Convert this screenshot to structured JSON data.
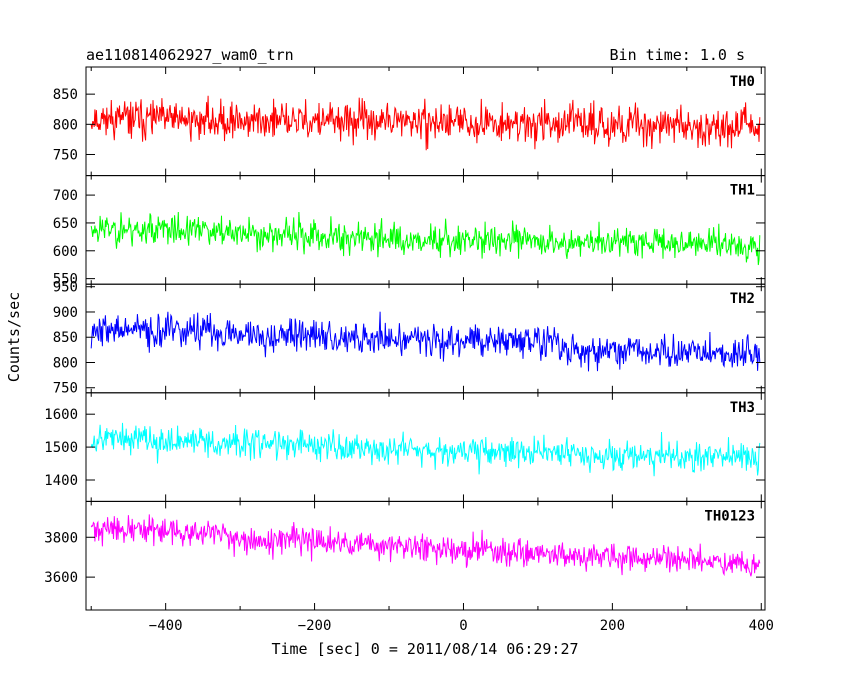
{
  "chart_data": {
    "type": "line",
    "title": "ae110814062927_wam0_trn",
    "subtitle": "Bin time: 1.0 s",
    "xlabel": "Time [sec] 0 = 2011/08/14 06:29:27",
    "ylabel": "Counts/sec",
    "xlim": [
      -507,
      405
    ],
    "xticks": [
      -400,
      -200,
      0,
      200,
      400
    ],
    "xtick_labels": [
      "−400",
      "−200",
      "0",
      "200",
      "400"
    ],
    "grid": false,
    "panels": [
      {
        "name": "TH0",
        "color": "#ff0000",
        "ylim": [
          715,
          895
        ],
        "yticks": [
          750,
          800,
          850
        ],
        "ytick_labels": [
          "750",
          "800",
          "850"
        ],
        "x": [
          -500,
          -400,
          -300,
          -200,
          -100,
          0,
          100,
          200,
          300,
          400
        ],
        "y": [
          810,
          808,
          806,
          805,
          804,
          803,
          801,
          800,
          798,
          796
        ],
        "noise": 26,
        "seed": 11
      },
      {
        "name": "TH1",
        "color": "#00ff00",
        "ylim": [
          540,
          735
        ],
        "yticks": [
          550,
          600,
          650,
          700
        ],
        "ytick_labels": [
          "550",
          "600",
          "650",
          "700"
        ],
        "x": [
          -500,
          -400,
          -300,
          -200,
          -100,
          0,
          100,
          200,
          300,
          400
        ],
        "y": [
          640,
          638,
          632,
          626,
          622,
          620,
          617,
          616,
          614,
          612
        ],
        "noise": 24,
        "seed": 23
      },
      {
        "name": "TH2",
        "color": "#0000ff",
        "ylim": [
          740,
          955
        ],
        "yticks": [
          750,
          800,
          850,
          900,
          950
        ],
        "ytick_labels": [
          "750",
          "800",
          "850",
          "900",
          "950"
        ],
        "x": [
          -500,
          -400,
          -300,
          -200,
          -100,
          0,
          100,
          125,
          130,
          200,
          300,
          400
        ],
        "y": [
          865,
          862,
          858,
          852,
          848,
          845,
          842,
          841,
          826,
          822,
          818,
          815
        ],
        "noise": 28,
        "seed": 37
      },
      {
        "name": "TH3",
        "color": "#00ffff",
        "ylim": [
          1335,
          1665
        ],
        "yticks": [
          1400,
          1500,
          1600
        ],
        "ytick_labels": [
          "1400",
          "1500",
          "1600"
        ],
        "x": [
          -500,
          -400,
          -300,
          -200,
          -100,
          0,
          100,
          200,
          300,
          400
        ],
        "y": [
          1530,
          1520,
          1512,
          1505,
          1497,
          1490,
          1484,
          1478,
          1472,
          1466
        ],
        "noise": 38,
        "seed": 53
      },
      {
        "name": "TH0123",
        "color": "#ff00ff",
        "ylim": [
          3435,
          3980
        ],
        "yticks": [
          3600,
          3800
        ],
        "ytick_labels": [
          "3600",
          "3800"
        ],
        "x": [
          -500,
          -400,
          -300,
          -200,
          -100,
          0,
          100,
          200,
          300,
          400
        ],
        "y": [
          3845,
          3830,
          3800,
          3775,
          3755,
          3740,
          3725,
          3700,
          3680,
          3665
        ],
        "noise": 58,
        "seed": 71
      }
    ]
  }
}
